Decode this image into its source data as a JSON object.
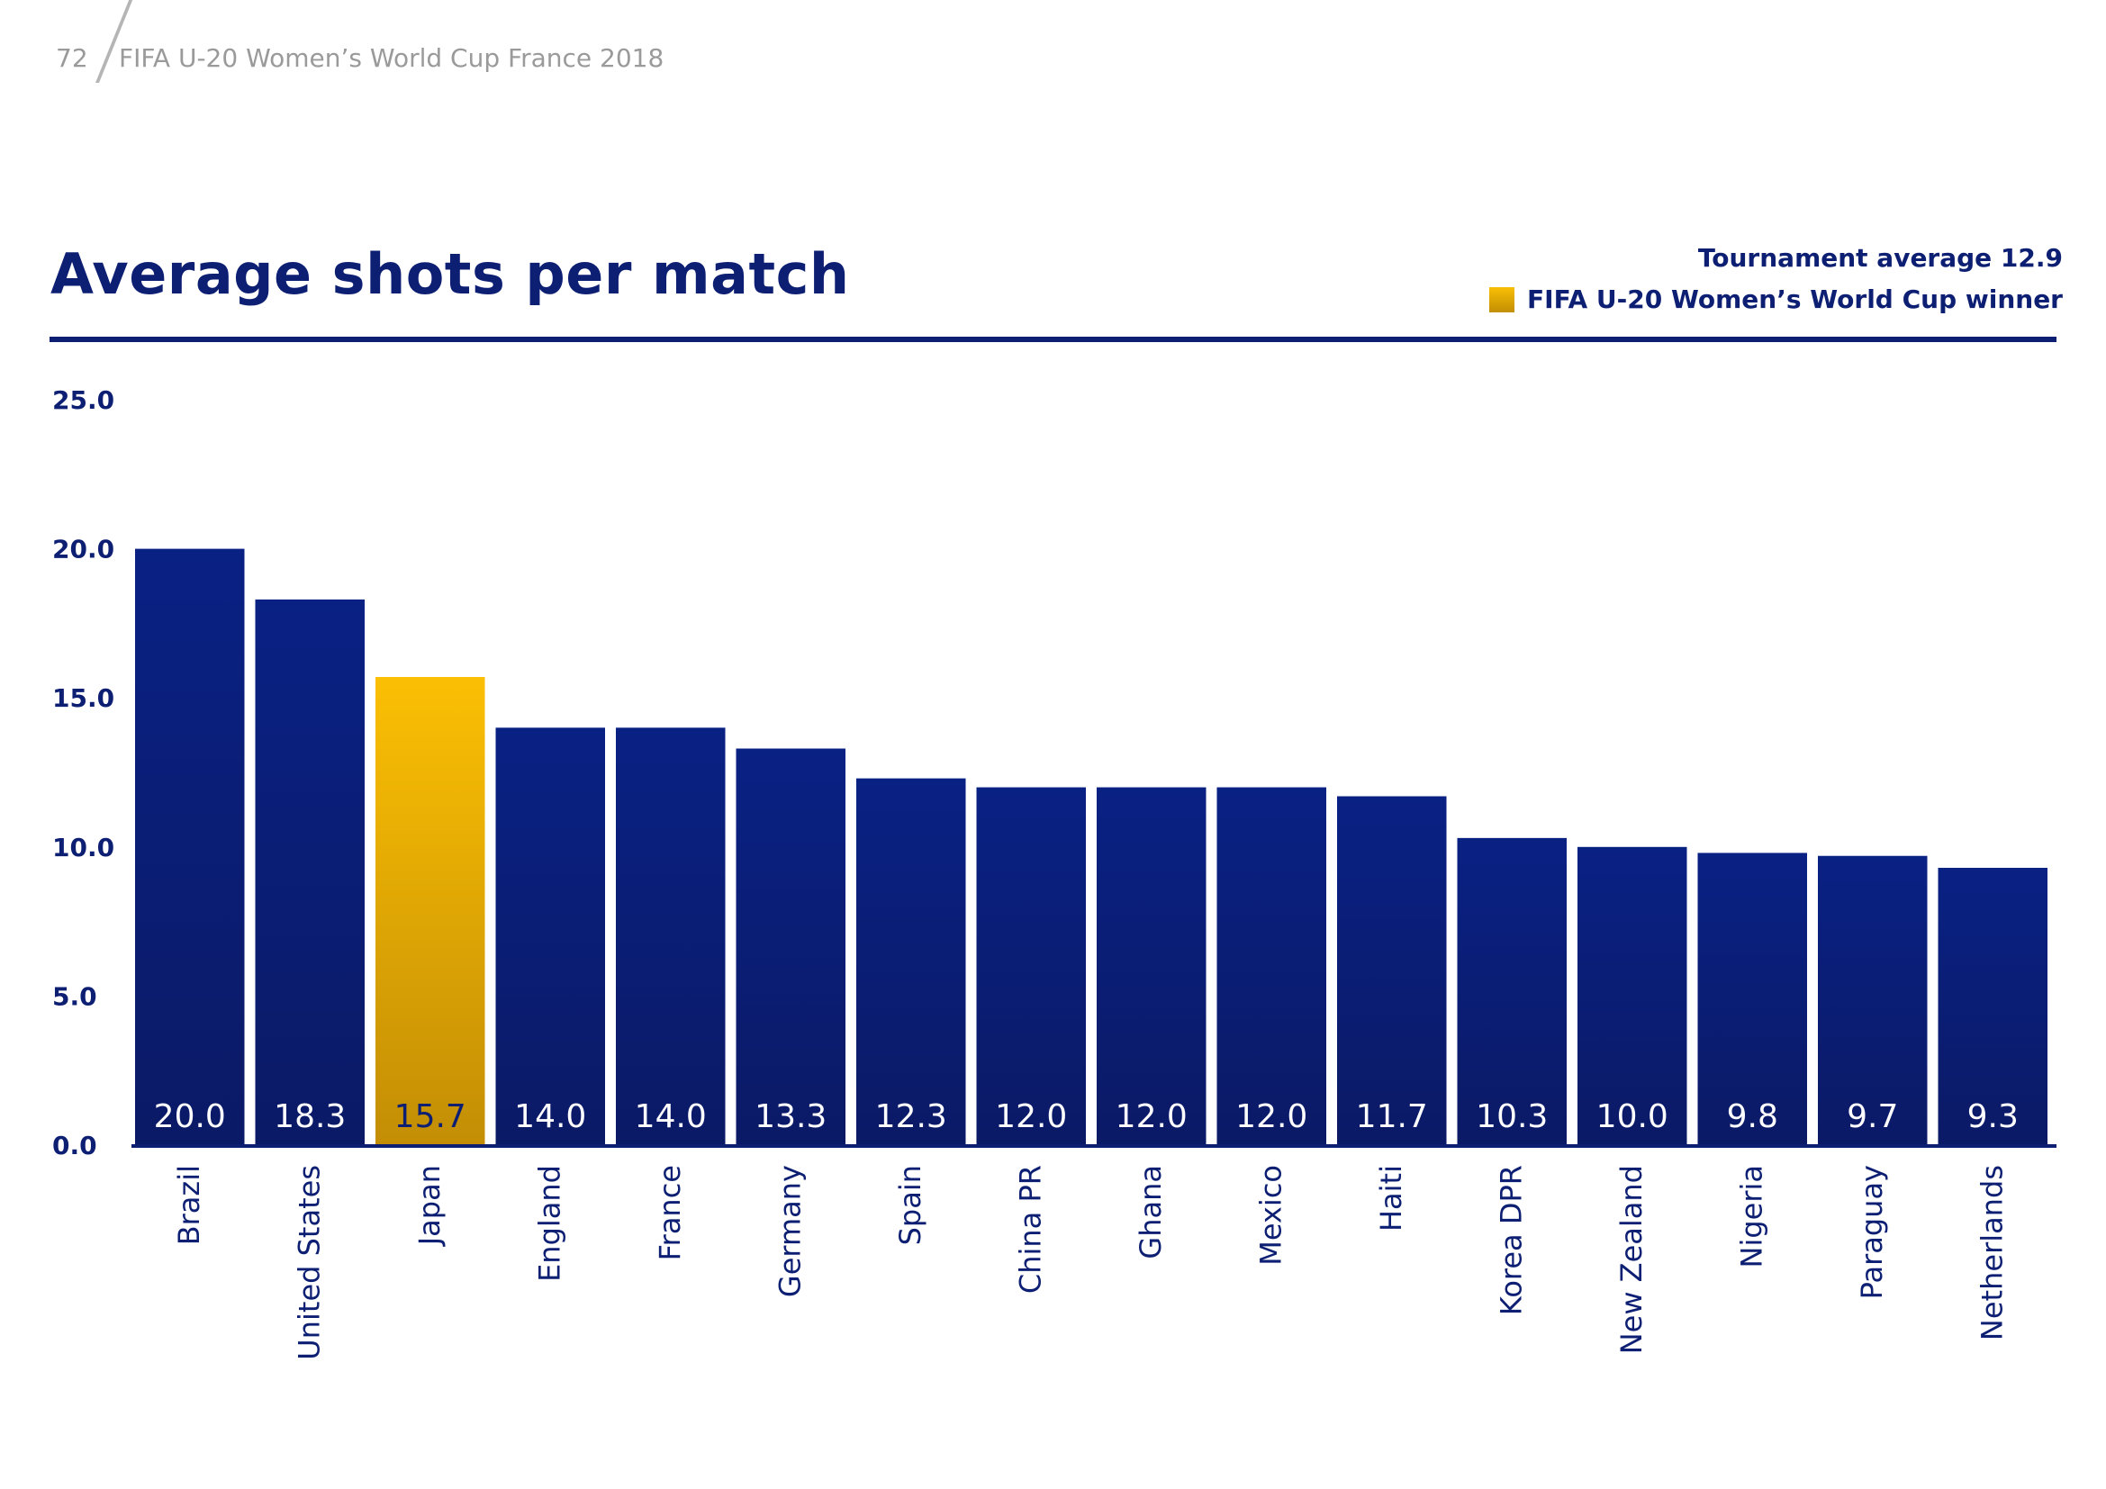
{
  "page": {
    "number": "72",
    "report_title": "FIFA U-20 Women’s World Cup France 2018"
  },
  "colors": {
    "navy": "#0d1f73",
    "bar_top": "#0a2184",
    "bar_bottom": "#0b1a66",
    "gold_top": "#fbbf04",
    "gold_bottom": "#c38e05"
  },
  "chart_data": {
    "type": "bar",
    "title": "Average shots per match",
    "annotation": "Tournament average 12.9",
    "legend": [
      {
        "label": "FIFA U-20 Women’s World Cup winner",
        "color": "#fbbf04"
      }
    ],
    "ylim": [
      0,
      25
    ],
    "yticks": [
      "0.0",
      "5.0",
      "10.0",
      "15.0",
      "20.0",
      "25.0"
    ],
    "grid": false,
    "highlight": "Japan",
    "categories": [
      "Brazil",
      "United States",
      "Japan",
      "England",
      "France",
      "Germany",
      "Spain",
      "China PR",
      "Ghana",
      "Mexico",
      "Haiti",
      "Korea DPR",
      "New Zealand",
      "Nigeria",
      "Paraguay",
      "Netherlands"
    ],
    "values": [
      20.0,
      18.3,
      15.7,
      14.0,
      14.0,
      13.3,
      12.3,
      12.0,
      12.0,
      12.0,
      11.7,
      10.3,
      10.0,
      9.8,
      9.7,
      9.3
    ],
    "value_labels": [
      "20.0",
      "18.3",
      "15.7",
      "14.0",
      "14.0",
      "13.3",
      "12.3",
      "12.0",
      "12.0",
      "12.0",
      "11.7",
      "10.3",
      "10.0",
      "9.8",
      "9.7",
      "9.3"
    ]
  }
}
